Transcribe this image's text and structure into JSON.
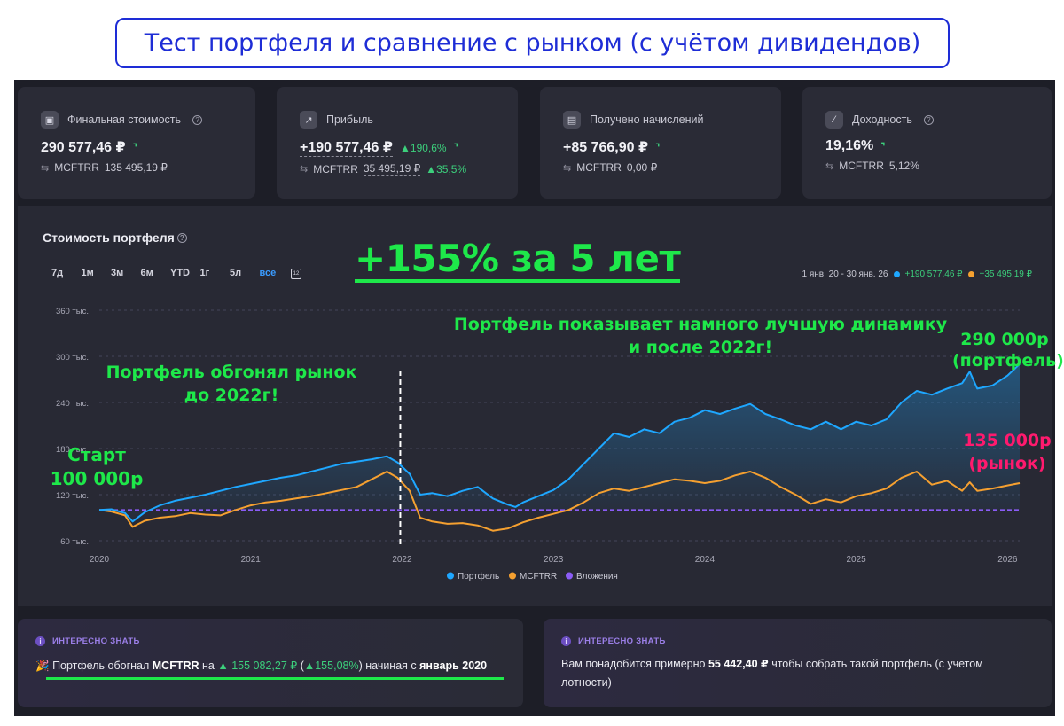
{
  "page_title": "Тест портфеля и сравнение с рынком (с учётом дивидендов)",
  "stats": [
    {
      "icon": "wallet-icon",
      "label": "Финальная стоимость",
      "has_help": true,
      "value": "290 577,46 ₽",
      "pct": "",
      "bench_label": "MCFTRR",
      "bench_value": "135 495,19 ₽",
      "bench_pct": ""
    },
    {
      "icon": "chart-line-icon",
      "label": "Прибыль",
      "has_help": false,
      "value": "+190 577,46 ₽",
      "pct": "190,6%",
      "bench_label": "MCFTRR",
      "bench_value": "35 495,19 ₽",
      "bench_pct": "35,5%"
    },
    {
      "icon": "receipt-icon",
      "label": "Получено начислений",
      "has_help": false,
      "value": "+85 766,90 ₽",
      "pct": "",
      "bench_label": "MCFTRR",
      "bench_value": "0,00 ₽",
      "bench_pct": ""
    },
    {
      "icon": "percent-icon",
      "label": "Доходность",
      "has_help": true,
      "value": "19,16%",
      "pct": "",
      "bench_label": "MCFTRR",
      "bench_value": "5,12%",
      "bench_pct": ""
    }
  ],
  "chart_panel": {
    "title": "Стоимость портфеля",
    "ranges": [
      "7д",
      "1м",
      "3м",
      "6м",
      "YTD",
      "1г",
      "5л",
      "все"
    ],
    "active_range": "все",
    "period": "1 янв. 20 - 30 янв. 26",
    "portfolio_delta": "+190 577,46 ₽",
    "bench_delta": "+35 495,19 ₽",
    "legend": [
      "Портфель",
      "MCFTRR",
      "Вложения"
    ],
    "colors": {
      "portfolio": "#1ea7ff",
      "bench": "#f5a030",
      "invest": "#8b5cf6",
      "annotation": "#1ee84a",
      "annotation_pink": "#ff1a6e"
    }
  },
  "annotations": {
    "headline": "+155% за 5 лет",
    "before_2022_line1": "Портфель обгонял рынок",
    "before_2022_line2": "до 2022г!",
    "after_2022_line1": "Портфель показывает намного лучшую динамику",
    "after_2022_line2": "и после 2022г!",
    "start_line1": "Старт",
    "start_line2": "100 000р",
    "end_portfolio_line1": "290 000р",
    "end_portfolio_line2": "(портфель)",
    "end_bench_line1": "135 000р",
    "end_bench_line2": "(рынок)"
  },
  "chart_data": {
    "type": "area",
    "x_ticks": [
      "2020",
      "2021",
      "2022",
      "2023",
      "2024",
      "2025",
      "2026"
    ],
    "y_ticks": [
      "60 тыс.",
      "120 тыс.",
      "180 тыс.",
      "240 тыс.",
      "300 тыс.",
      "360 тыс."
    ],
    "ylim": [
      60000,
      360000
    ],
    "xlim": [
      2020.0,
      2026.08
    ],
    "grid": true,
    "legend_position": "bottom",
    "marker_x": 2022.0,
    "series": [
      {
        "name": "Портфель",
        "x": [
          2020.0,
          2020.08,
          2020.17,
          2020.22,
          2020.3,
          2020.4,
          2020.5,
          2020.6,
          2020.7,
          2020.8,
          2020.9,
          2021.0,
          2021.1,
          2021.2,
          2021.3,
          2021.4,
          2021.5,
          2021.6,
          2021.7,
          2021.8,
          2021.9,
          2021.97,
          2022.05,
          2022.12,
          2022.2,
          2022.3,
          2022.4,
          2022.5,
          2022.6,
          2022.7,
          2022.75,
          2022.8,
          2022.9,
          2023.0,
          2023.1,
          2023.2,
          2023.3,
          2023.4,
          2023.5,
          2023.6,
          2023.7,
          2023.8,
          2023.9,
          2024.0,
          2024.1,
          2024.2,
          2024.3,
          2024.4,
          2024.5,
          2024.6,
          2024.7,
          2024.8,
          2024.9,
          2025.0,
          2025.1,
          2025.2,
          2025.3,
          2025.4,
          2025.5,
          2025.6,
          2025.7,
          2025.75,
          2025.8,
          2025.9,
          2026.0,
          2026.08
        ],
        "values": [
          100000,
          101000,
          96000,
          85000,
          97000,
          106000,
          112000,
          116000,
          120000,
          125000,
          130000,
          134000,
          138000,
          142000,
          145000,
          150000,
          155000,
          160000,
          163000,
          166000,
          170000,
          162000,
          147000,
          120000,
          122000,
          118000,
          125000,
          130000,
          115000,
          107000,
          104000,
          110000,
          118000,
          126000,
          140000,
          160000,
          180000,
          200000,
          195000,
          205000,
          200000,
          215000,
          220000,
          230000,
          225000,
          232000,
          238000,
          225000,
          218000,
          210000,
          205000,
          215000,
          205000,
          215000,
          210000,
          218000,
          240000,
          255000,
          250000,
          258000,
          265000,
          280000,
          258000,
          262000,
          275000,
          290000
        ]
      },
      {
        "name": "MCFTRR",
        "x": [
          2020.0,
          2020.08,
          2020.17,
          2020.22,
          2020.3,
          2020.4,
          2020.5,
          2020.6,
          2020.7,
          2020.8,
          2020.9,
          2021.0,
          2021.1,
          2021.2,
          2021.3,
          2021.4,
          2021.5,
          2021.6,
          2021.7,
          2021.8,
          2021.9,
          2021.97,
          2022.05,
          2022.12,
          2022.2,
          2022.3,
          2022.4,
          2022.5,
          2022.6,
          2022.7,
          2022.75,
          2022.8,
          2022.9,
          2023.0,
          2023.1,
          2023.2,
          2023.3,
          2023.4,
          2023.5,
          2023.6,
          2023.7,
          2023.8,
          2023.9,
          2024.0,
          2024.1,
          2024.2,
          2024.3,
          2024.4,
          2024.5,
          2024.6,
          2024.7,
          2024.8,
          2024.9,
          2025.0,
          2025.1,
          2025.2,
          2025.3,
          2025.4,
          2025.5,
          2025.6,
          2025.7,
          2025.75,
          2025.8,
          2025.9,
          2026.0,
          2026.08
        ],
        "values": [
          100000,
          98000,
          93000,
          78000,
          86000,
          90000,
          92000,
          96000,
          94000,
          93000,
          100000,
          106000,
          110000,
          112000,
          115000,
          118000,
          122000,
          126000,
          130000,
          140000,
          150000,
          142000,
          125000,
          90000,
          85000,
          82000,
          83000,
          80000,
          73000,
          76000,
          80000,
          84000,
          90000,
          95000,
          100000,
          110000,
          122000,
          128000,
          125000,
          130000,
          135000,
          140000,
          138000,
          135000,
          138000,
          145000,
          150000,
          142000,
          130000,
          120000,
          108000,
          114000,
          110000,
          118000,
          122000,
          128000,
          142000,
          150000,
          133000,
          138000,
          125000,
          136000,
          125000,
          128000,
          132000,
          135000
        ]
      },
      {
        "name": "Вложения",
        "x": [
          2020.0,
          2026.08
        ],
        "values": [
          100000,
          100000
        ]
      }
    ]
  },
  "info": [
    {
      "label": "ИНТЕРЕСНО ЗНАТЬ",
      "text_pre": "Портфель обогнал",
      "ticker": "MCFTRR",
      "text_on": "на",
      "amount": "155 082,27 ₽",
      "pct": "155,08%",
      "text_since": "начиная с",
      "since": "январь 2020"
    },
    {
      "label": "ИНТЕРЕСНО ЗНАТЬ",
      "text_pre": "Вам понадобится примерно",
      "amount": "55 442,40 ₽",
      "text_post": "чтобы собрать такой портфель (с учетом лотности)"
    }
  ]
}
